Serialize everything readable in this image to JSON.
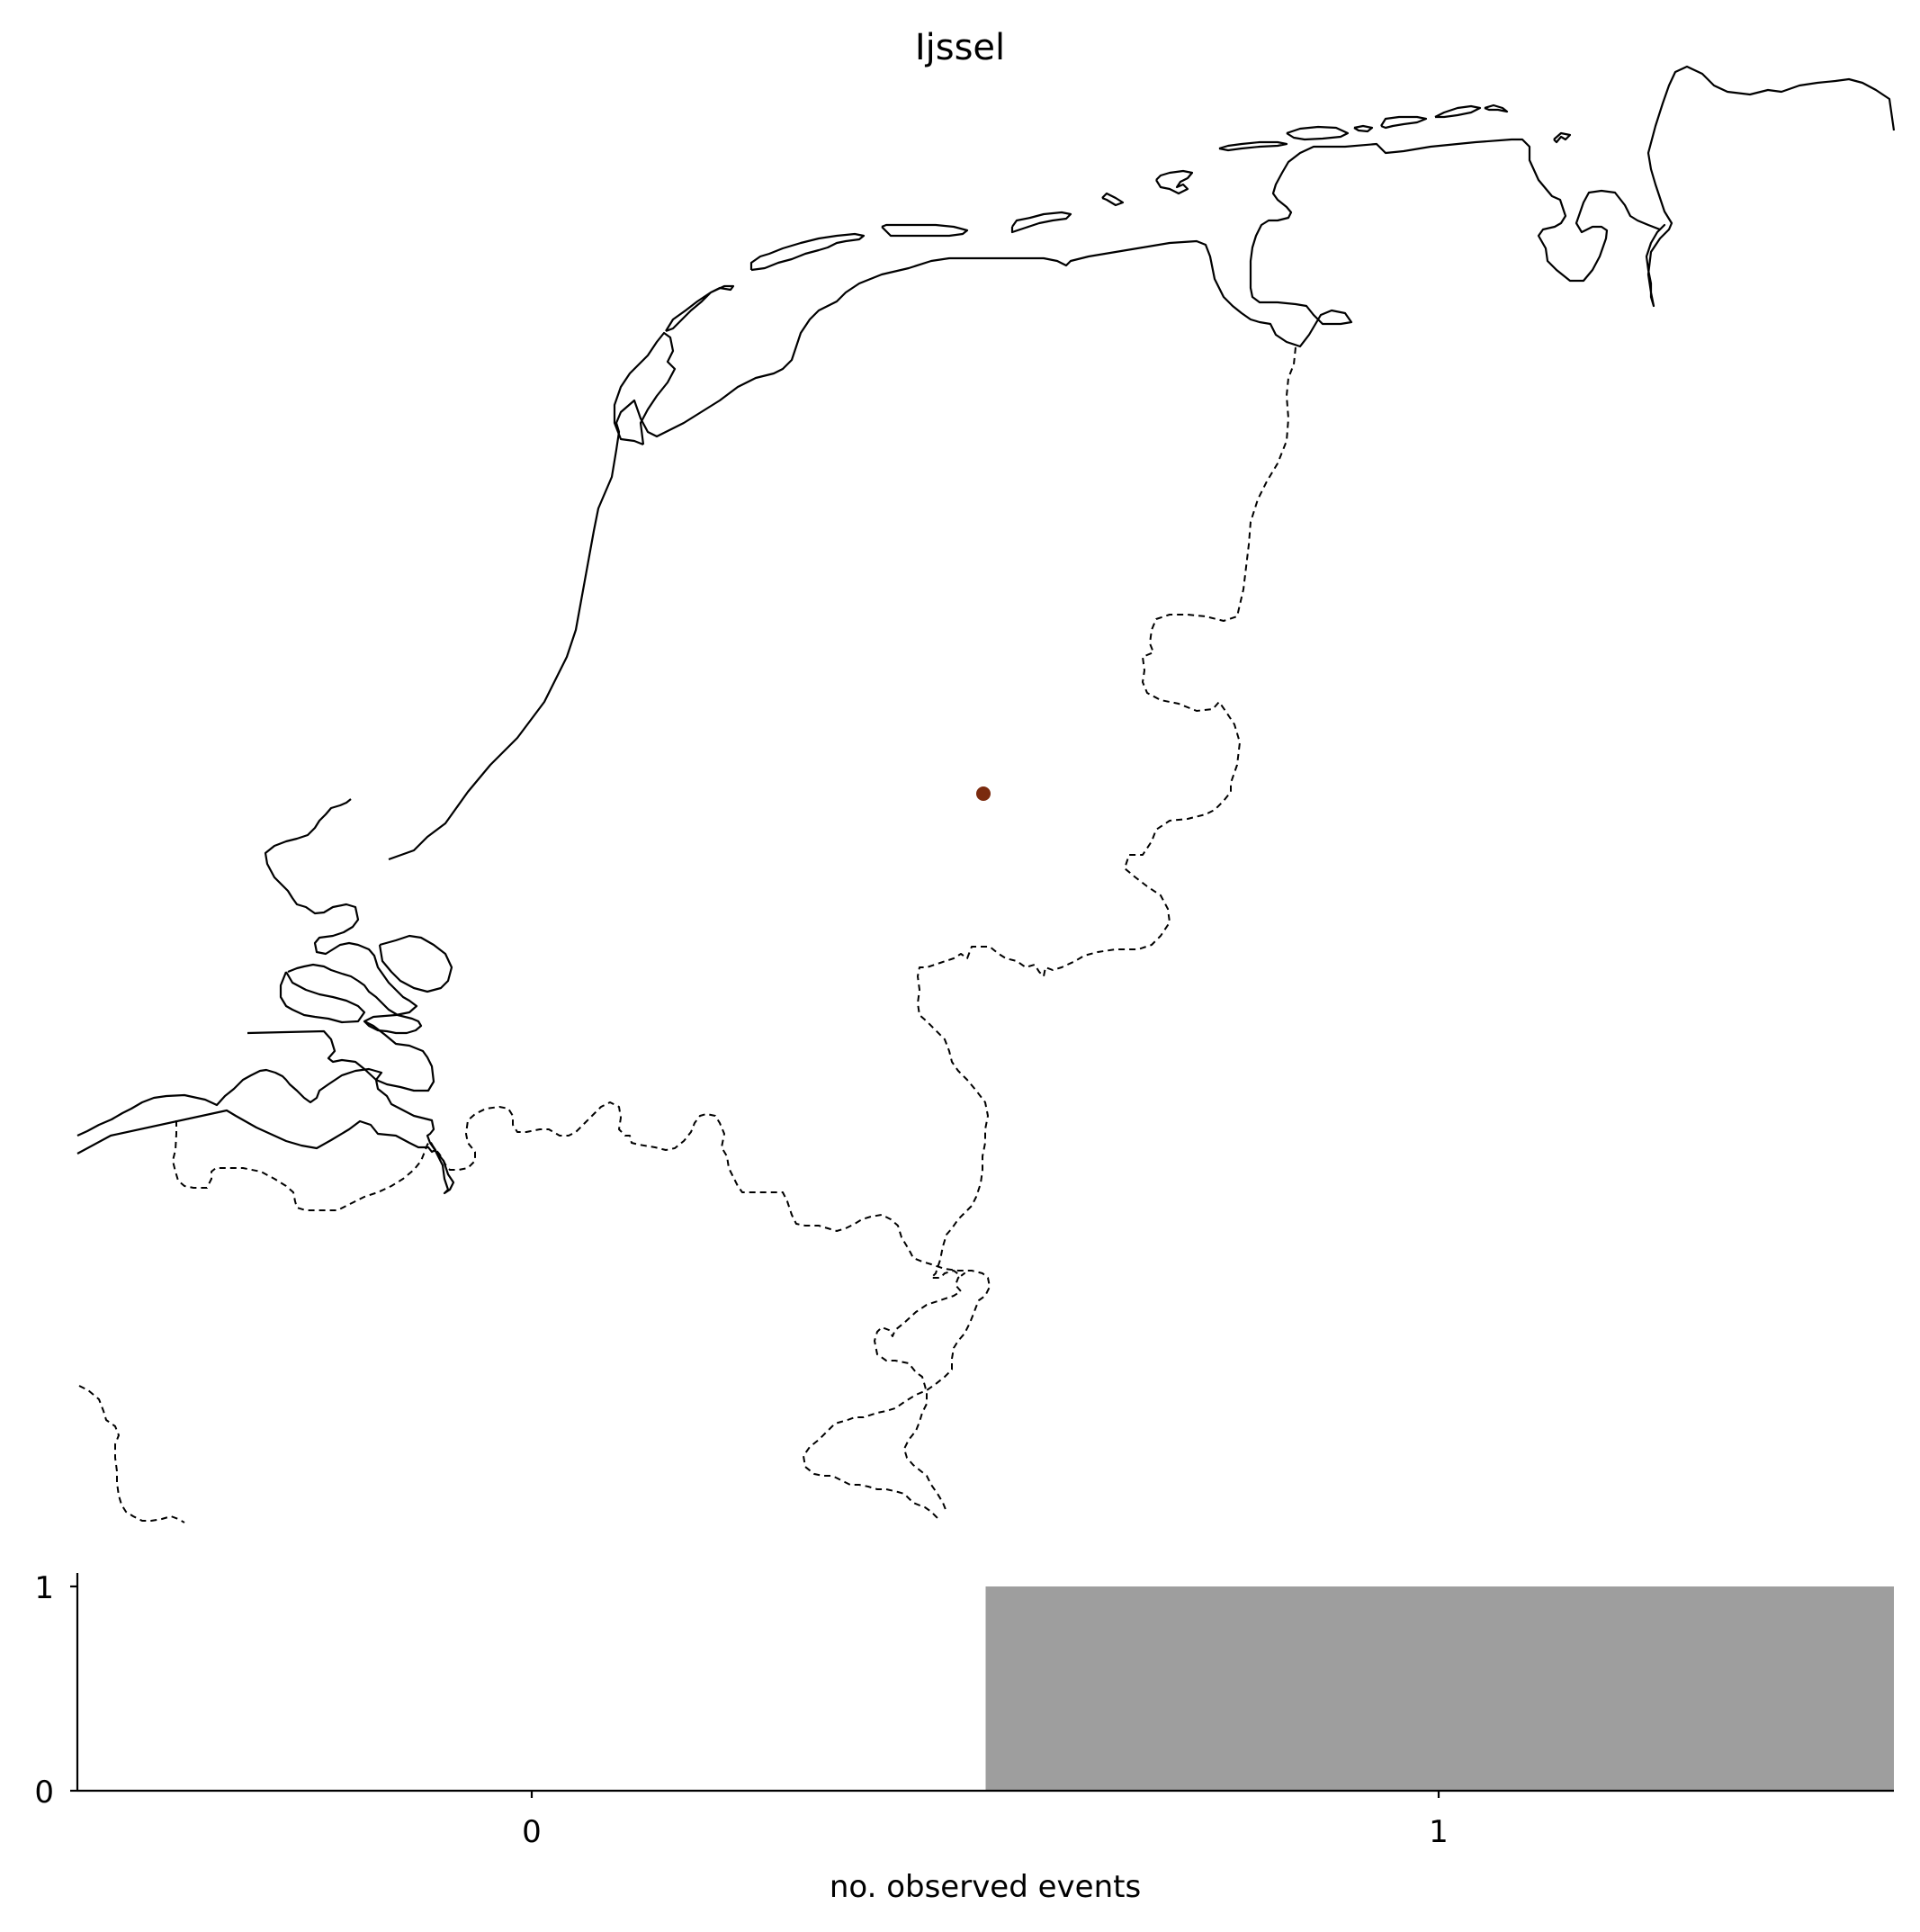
{
  "title": "Ijssel",
  "map": {
    "marker": {
      "color": "#7a2a0e"
    },
    "coastline_color": "#000000",
    "border_style": "dashed"
  },
  "chart_data": {
    "type": "bar",
    "categories": [
      "0",
      "1"
    ],
    "values": [
      0,
      1
    ],
    "title": "",
    "xlabel": "no. observed events",
    "ylabel": "",
    "ylim": [
      0,
      1
    ],
    "yticks": [
      "0",
      "1"
    ],
    "xticks": [
      "0",
      "1"
    ],
    "bar_color": "#9e9e9e",
    "grid": false
  }
}
